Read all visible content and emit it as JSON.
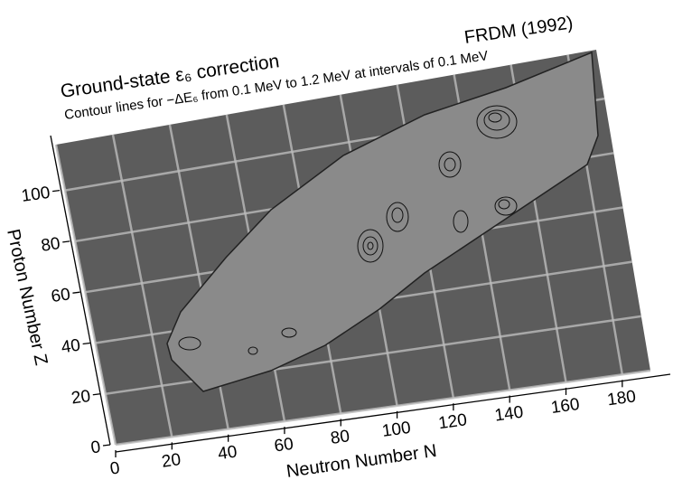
{
  "chart_data": {
    "type": "surface",
    "title": "Ground-state ε₆ correction",
    "subtitle": "Contour lines for −ΔE₆ from 0.1 MeV to 1.2 MeV at intervals of 0.1 MeV",
    "annotation": "FRDM (1992)",
    "x_label": "Neutron Number N",
    "y_label": "Proton Number Z",
    "xlim": [
      0,
      190
    ],
    "xticks": [
      0,
      20,
      40,
      60,
      80,
      100,
      120,
      140,
      160,
      180
    ],
    "ylim": [
      0,
      118
    ],
    "yticks": [
      0,
      20,
      40,
      60,
      80,
      100
    ],
    "grid": true
  }
}
